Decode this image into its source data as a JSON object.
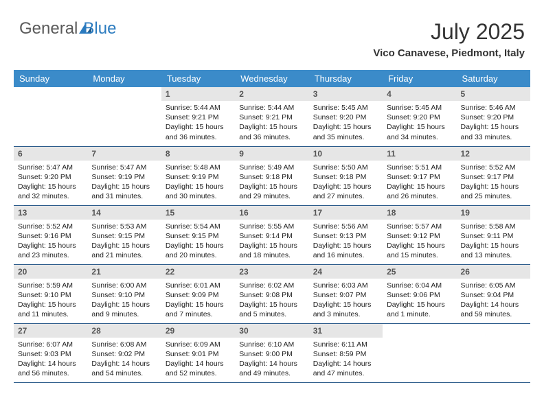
{
  "brand": {
    "name_part1": "General",
    "name_part2": "Blue",
    "icon_color": "#2b7bbf"
  },
  "title": "July 2025",
  "location": "Vico Canavese, Piedmont, Italy",
  "colors": {
    "header_bg": "#3b8bc9",
    "header_text": "#ffffff",
    "daynum_bg": "#e6e6e6",
    "border": "#2a5a8a"
  },
  "day_headers": [
    "Sunday",
    "Monday",
    "Tuesday",
    "Wednesday",
    "Thursday",
    "Friday",
    "Saturday"
  ],
  "weeks": [
    [
      {
        "empty": true
      },
      {
        "empty": true
      },
      {
        "num": "1",
        "sunrise": "5:44 AM",
        "sunset": "9:21 PM",
        "daylight": "15 hours and 36 minutes."
      },
      {
        "num": "2",
        "sunrise": "5:44 AM",
        "sunset": "9:21 PM",
        "daylight": "15 hours and 36 minutes."
      },
      {
        "num": "3",
        "sunrise": "5:45 AM",
        "sunset": "9:20 PM",
        "daylight": "15 hours and 35 minutes."
      },
      {
        "num": "4",
        "sunrise": "5:45 AM",
        "sunset": "9:20 PM",
        "daylight": "15 hours and 34 minutes."
      },
      {
        "num": "5",
        "sunrise": "5:46 AM",
        "sunset": "9:20 PM",
        "daylight": "15 hours and 33 minutes."
      }
    ],
    [
      {
        "num": "6",
        "sunrise": "5:47 AM",
        "sunset": "9:20 PM",
        "daylight": "15 hours and 32 minutes."
      },
      {
        "num": "7",
        "sunrise": "5:47 AM",
        "sunset": "9:19 PM",
        "daylight": "15 hours and 31 minutes."
      },
      {
        "num": "8",
        "sunrise": "5:48 AM",
        "sunset": "9:19 PM",
        "daylight": "15 hours and 30 minutes."
      },
      {
        "num": "9",
        "sunrise": "5:49 AM",
        "sunset": "9:18 PM",
        "daylight": "15 hours and 29 minutes."
      },
      {
        "num": "10",
        "sunrise": "5:50 AM",
        "sunset": "9:18 PM",
        "daylight": "15 hours and 27 minutes."
      },
      {
        "num": "11",
        "sunrise": "5:51 AM",
        "sunset": "9:17 PM",
        "daylight": "15 hours and 26 minutes."
      },
      {
        "num": "12",
        "sunrise": "5:52 AM",
        "sunset": "9:17 PM",
        "daylight": "15 hours and 25 minutes."
      }
    ],
    [
      {
        "num": "13",
        "sunrise": "5:52 AM",
        "sunset": "9:16 PM",
        "daylight": "15 hours and 23 minutes."
      },
      {
        "num": "14",
        "sunrise": "5:53 AM",
        "sunset": "9:15 PM",
        "daylight": "15 hours and 21 minutes."
      },
      {
        "num": "15",
        "sunrise": "5:54 AM",
        "sunset": "9:15 PM",
        "daylight": "15 hours and 20 minutes."
      },
      {
        "num": "16",
        "sunrise": "5:55 AM",
        "sunset": "9:14 PM",
        "daylight": "15 hours and 18 minutes."
      },
      {
        "num": "17",
        "sunrise": "5:56 AM",
        "sunset": "9:13 PM",
        "daylight": "15 hours and 16 minutes."
      },
      {
        "num": "18",
        "sunrise": "5:57 AM",
        "sunset": "9:12 PM",
        "daylight": "15 hours and 15 minutes."
      },
      {
        "num": "19",
        "sunrise": "5:58 AM",
        "sunset": "9:11 PM",
        "daylight": "15 hours and 13 minutes."
      }
    ],
    [
      {
        "num": "20",
        "sunrise": "5:59 AM",
        "sunset": "9:10 PM",
        "daylight": "15 hours and 11 minutes."
      },
      {
        "num": "21",
        "sunrise": "6:00 AM",
        "sunset": "9:10 PM",
        "daylight": "15 hours and 9 minutes."
      },
      {
        "num": "22",
        "sunrise": "6:01 AM",
        "sunset": "9:09 PM",
        "daylight": "15 hours and 7 minutes."
      },
      {
        "num": "23",
        "sunrise": "6:02 AM",
        "sunset": "9:08 PM",
        "daylight": "15 hours and 5 minutes."
      },
      {
        "num": "24",
        "sunrise": "6:03 AM",
        "sunset": "9:07 PM",
        "daylight": "15 hours and 3 minutes."
      },
      {
        "num": "25",
        "sunrise": "6:04 AM",
        "sunset": "9:06 PM",
        "daylight": "15 hours and 1 minute."
      },
      {
        "num": "26",
        "sunrise": "6:05 AM",
        "sunset": "9:04 PM",
        "daylight": "14 hours and 59 minutes."
      }
    ],
    [
      {
        "num": "27",
        "sunrise": "6:07 AM",
        "sunset": "9:03 PM",
        "daylight": "14 hours and 56 minutes."
      },
      {
        "num": "28",
        "sunrise": "6:08 AM",
        "sunset": "9:02 PM",
        "daylight": "14 hours and 54 minutes."
      },
      {
        "num": "29",
        "sunrise": "6:09 AM",
        "sunset": "9:01 PM",
        "daylight": "14 hours and 52 minutes."
      },
      {
        "num": "30",
        "sunrise": "6:10 AM",
        "sunset": "9:00 PM",
        "daylight": "14 hours and 49 minutes."
      },
      {
        "num": "31",
        "sunrise": "6:11 AM",
        "sunset": "8:59 PM",
        "daylight": "14 hours and 47 minutes."
      },
      {
        "empty": true
      },
      {
        "empty": true
      }
    ]
  ]
}
